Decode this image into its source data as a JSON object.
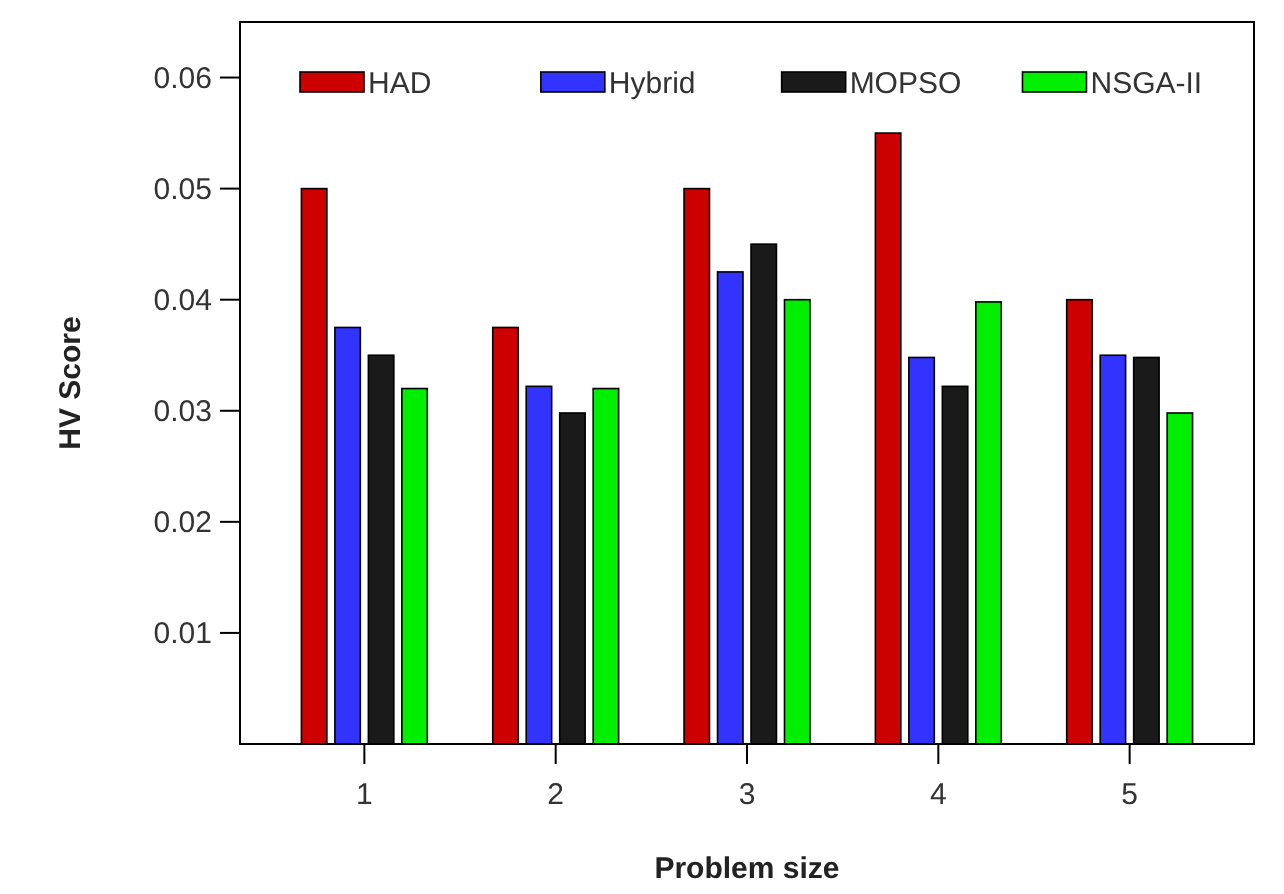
{
  "chart_data": {
    "type": "bar",
    "xlabel": "Problem size",
    "ylabel": "HV Score",
    "categories": [
      "1",
      "2",
      "3",
      "4",
      "5"
    ],
    "series": [
      {
        "name": "HAD",
        "color": "#cc0000",
        "values": [
          0.05,
          0.0375,
          0.05,
          0.055,
          0.04
        ]
      },
      {
        "name": "Hybrid",
        "color": "#3333ff",
        "values": [
          0.0375,
          0.0322,
          0.0425,
          0.0348,
          0.035
        ]
      },
      {
        "name": "MOPSO",
        "color": "#1a1a1a",
        "values": [
          0.035,
          0.0298,
          0.045,
          0.0322,
          0.0348
        ]
      },
      {
        "name": "NSGA-II",
        "color": "#00ee00",
        "values": [
          0.032,
          0.032,
          0.04,
          0.0398,
          0.0298
        ]
      }
    ],
    "ylim": [
      0,
      0.065
    ],
    "yticks": [
      0.01,
      0.02,
      0.03,
      0.04,
      0.05,
      0.06
    ],
    "grid": false,
    "legend": "top"
  }
}
